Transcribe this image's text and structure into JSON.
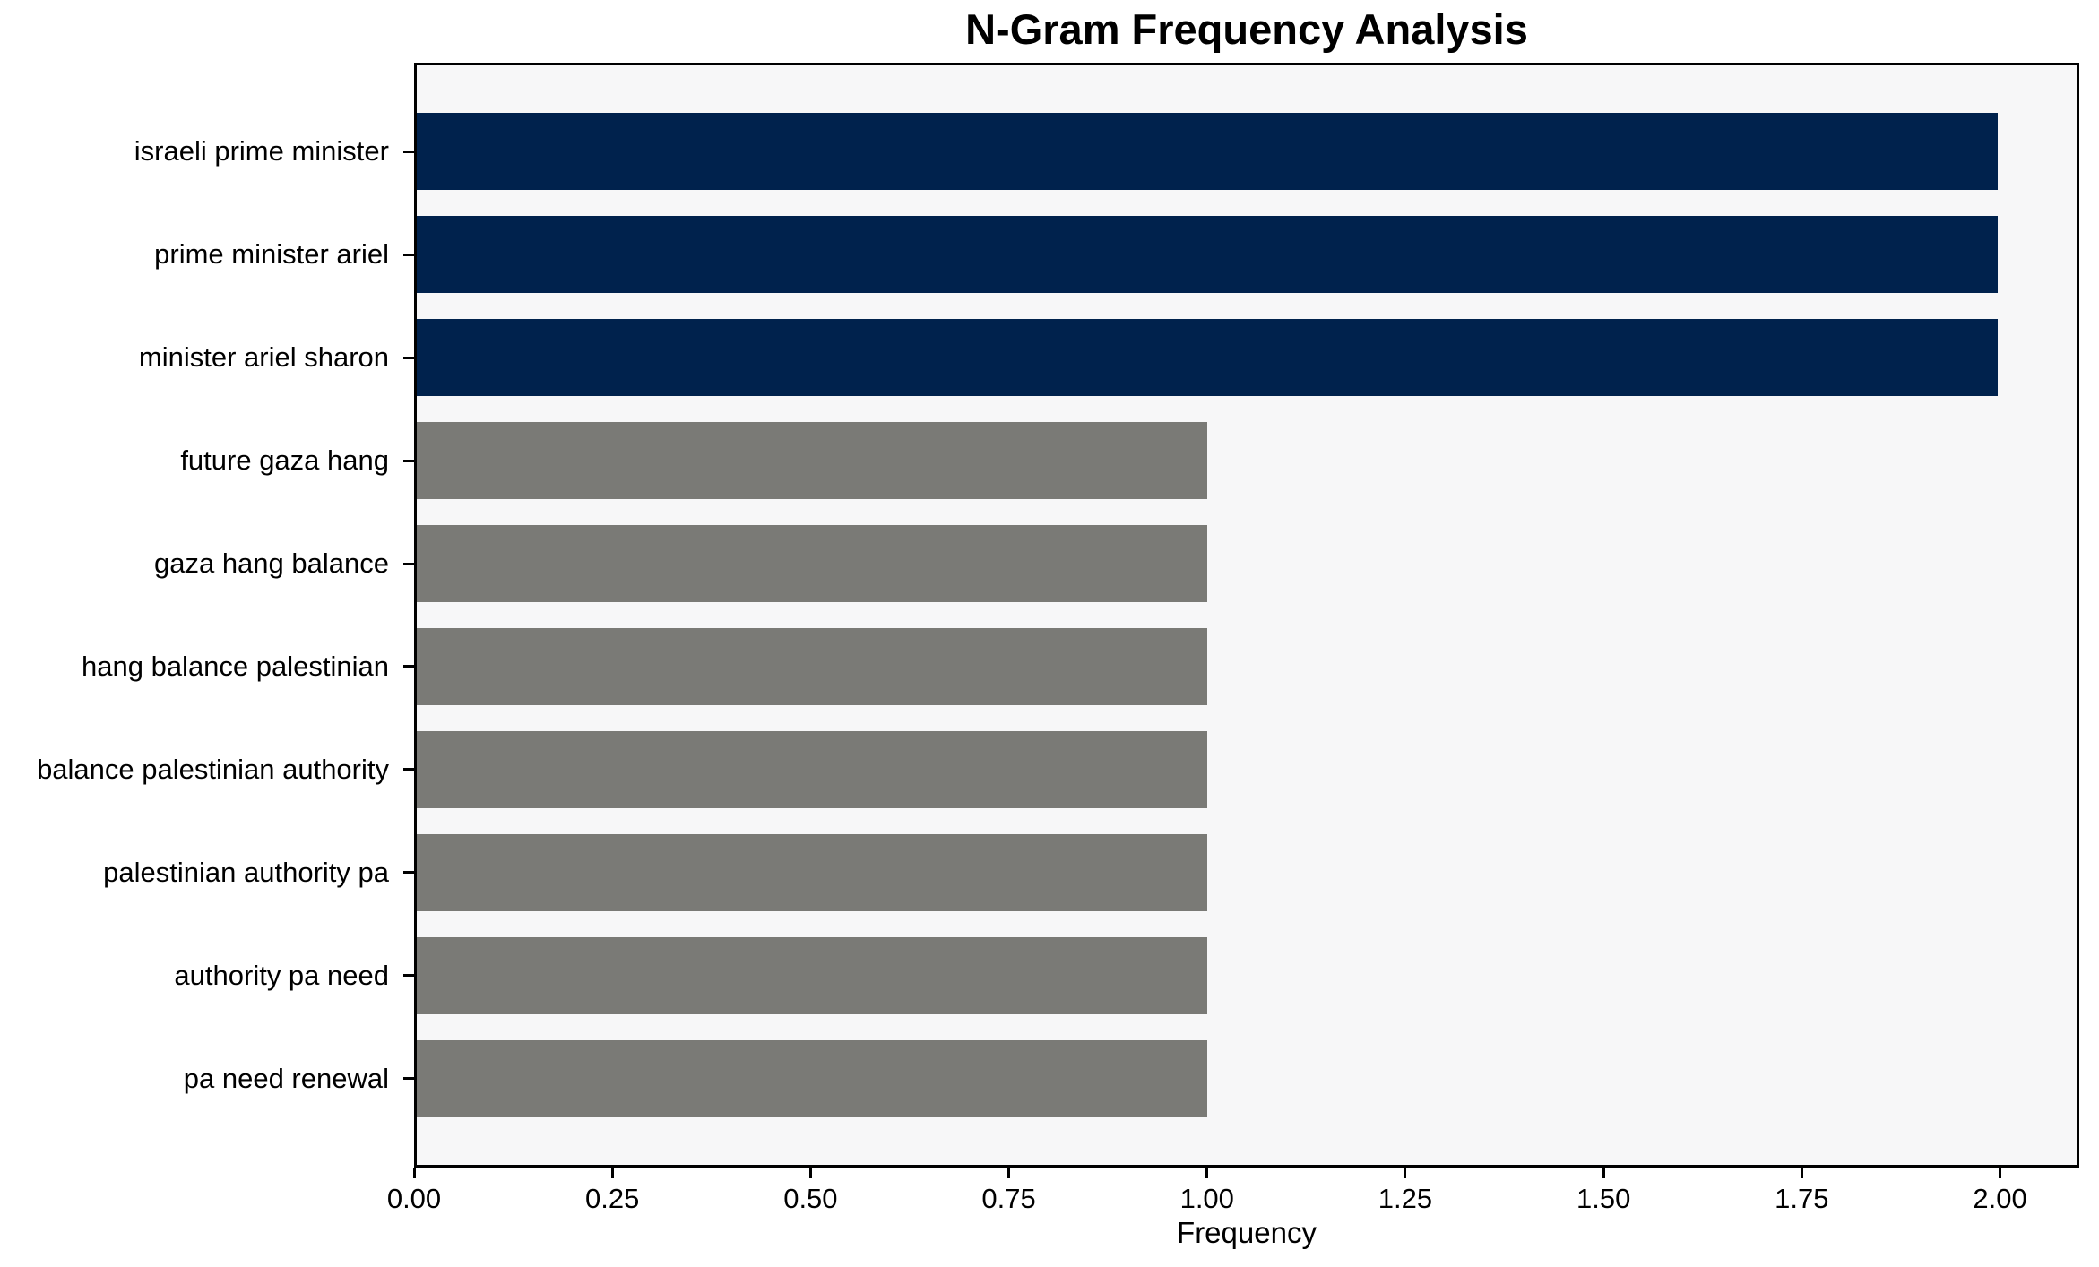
{
  "figure": {
    "background": "#ffffff"
  },
  "chart_data": {
    "type": "bar",
    "orientation": "horizontal",
    "title": "N-Gram Frequency Analysis",
    "xlabel": "Frequency",
    "ylabel": "",
    "categories": [
      "israeli prime minister",
      "prime minister ariel",
      "minister ariel sharon",
      "future gaza hang",
      "gaza hang balance",
      "hang balance palestinian",
      "balance palestinian authority",
      "palestinian authority pa",
      "authority pa need",
      "pa need renewal"
    ],
    "values": [
      2,
      2,
      2,
      1,
      1,
      1,
      1,
      1,
      1,
      1
    ],
    "bar_colors": [
      "#00224d",
      "#00224d",
      "#00224d",
      "#7a7a76",
      "#7a7a76",
      "#7a7a76",
      "#7a7a76",
      "#7a7a76",
      "#7a7a76",
      "#7a7a76"
    ],
    "x_tick_labels": [
      "0.00",
      "0.25",
      "0.50",
      "0.75",
      "1.00",
      "1.25",
      "1.50",
      "1.75",
      "2.00"
    ],
    "xlim": [
      0,
      2.1
    ],
    "grid": false,
    "legend": null,
    "plot_background": "#f7f7f8",
    "spine_color": "#000000"
  }
}
